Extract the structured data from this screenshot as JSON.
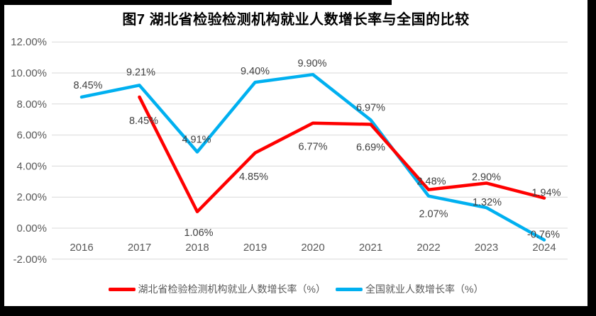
{
  "title": "图7 湖北省检验检测机构就业人数增长率与全国的比较",
  "colors": {
    "hubei_red": "#FF0000",
    "national_blue": "#00B0F0",
    "gridline": "#D9D9D9",
    "axis_text": "#595959",
    "label_text": "#404040",
    "frame": "#000000",
    "background": "#FFFFFF"
  },
  "chart_data": {
    "type": "line",
    "title": "图7 湖北省检验检测机构就业人数增长率与全国的比较",
    "categories": [
      "2016",
      "2017",
      "2018",
      "2019",
      "2020",
      "2021",
      "2022",
      "2023",
      "2024"
    ],
    "series": [
      {
        "name": "湖北省检验检测机构就业人数增长率（%）",
        "color_key": "hubei_red",
        "values": [
          null,
          8.45,
          1.06,
          4.85,
          6.77,
          6.69,
          2.48,
          2.9,
          1.94
        ],
        "labels": [
          "",
          "8.45%",
          "1.06%",
          "4.85%",
          "6.77%",
          "6.69%",
          "2.48%",
          "2.90%",
          "1.94%"
        ]
      },
      {
        "name": "全国就业人数增长率（%）",
        "color_key": "national_blue",
        "values": [
          8.45,
          9.21,
          4.91,
          9.4,
          9.9,
          6.97,
          2.07,
          1.32,
          -0.76
        ],
        "labels": [
          "8.45%",
          "9.21%",
          "4.91%",
          "9.40%",
          "9.90%",
          "6.97%",
          "2.07%",
          "1.32%",
          "-0.76%"
        ]
      }
    ],
    "y_axis": {
      "ticks": [
        12,
        10,
        8,
        6,
        4,
        2,
        0,
        -2
      ],
      "tick_labels": [
        "12.00%",
        "10.00%",
        "8.00%",
        "6.00%",
        "4.00%",
        "2.00%",
        "0.00%",
        "-2.00%"
      ],
      "ylim": [
        -2,
        12
      ]
    },
    "xlabel": "",
    "ylabel": "",
    "grid": true,
    "legend_position": "bottom"
  }
}
